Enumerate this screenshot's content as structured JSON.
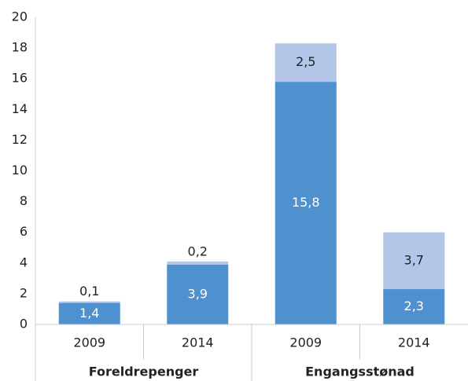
{
  "chart_data": {
    "type": "stacked_bar",
    "categories": [
      "2009",
      "2014",
      "2009",
      "2014"
    ],
    "groups": [
      "Foreldrepenger",
      "Engangsstønad"
    ],
    "series": [
      {
        "color": "#4f90ce",
        "values": [
          1.4,
          3.9,
          15.8,
          2.3
        ],
        "value_labels": [
          "1,4",
          "3,9",
          "15,8",
          "2,3"
        ],
        "label_color": "#ffffff"
      },
      {
        "color": "#b3c6e8",
        "values": [
          0.1,
          0.2,
          2.5,
          3.7
        ],
        "value_labels": [
          "0,1",
          "0,2",
          "2,5",
          "3,7"
        ],
        "label_color": "#222222"
      }
    ],
    "ylim": [
      0,
      20
    ],
    "yticks": [
      0,
      2,
      4,
      6,
      8,
      10,
      12,
      14,
      16,
      18,
      20
    ],
    "grid": false
  }
}
